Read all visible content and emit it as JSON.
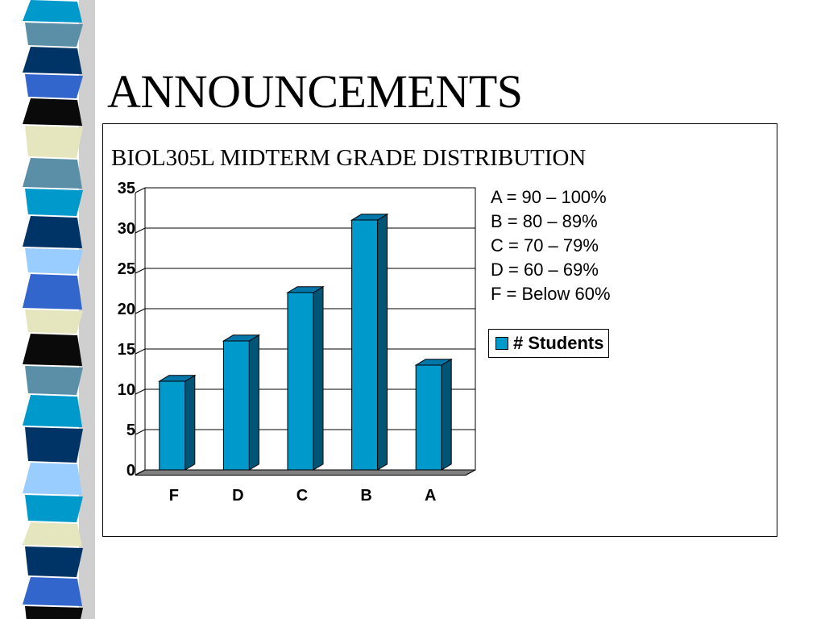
{
  "slide": {
    "title": "ANNOUNCEMENTS"
  },
  "decor": {
    "stripe_colors": [
      "#0099CC",
      "#5B8FA8",
      "#003366",
      "#3366CC",
      "#0A0A0A",
      "#E6E6BE",
      "#99CCFF"
    ]
  },
  "chart_data": {
    "type": "bar",
    "title": "BIOL305L MIDTERM GRADE DISTRIBUTION",
    "categories": [
      "F",
      "D",
      "C",
      "B",
      "A"
    ],
    "series": [
      {
        "name": "# Students",
        "values": [
          11,
          16,
          22,
          31,
          13
        ]
      }
    ],
    "ylim": [
      0,
      35
    ],
    "yticks": [
      0,
      5,
      10,
      15,
      20,
      25,
      30,
      35
    ],
    "grid": true,
    "three_d": true,
    "bar_color": "#0099CC",
    "bar_side_color": "#005577",
    "bar_top_color": "#0077A8",
    "legend_position": "right",
    "notes": [
      "A = 90 – 100%",
      "B = 80 – 89%",
      "C = 70 – 79%",
      "D = 60 – 69%",
      "F = Below 60%"
    ]
  }
}
